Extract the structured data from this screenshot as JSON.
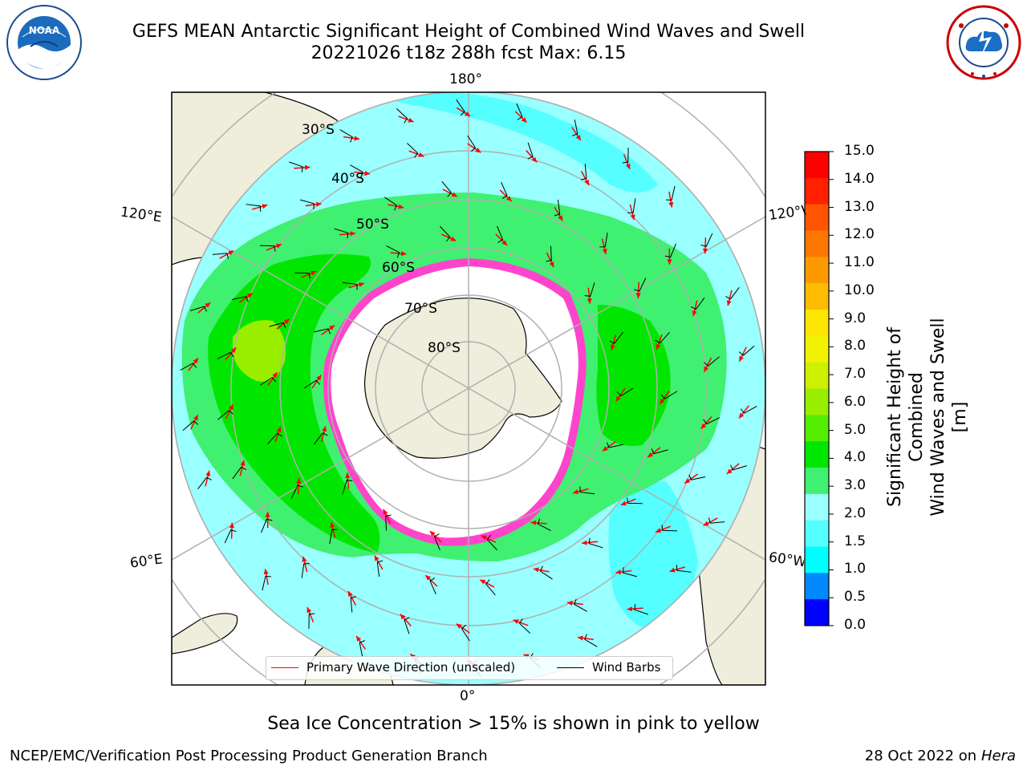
{
  "title": {
    "line1": "GEFS MEAN Antarctic Significant Height of Combined Wind Waves and Swell",
    "line2": "20221026 t18z 288h fcst   Max: 6.15"
  },
  "logos": {
    "left": "NOAA",
    "right": "NATIONAL WEATHER SERVICE"
  },
  "map": {
    "projection": "south-polar-stereographic",
    "longitude_labels": {
      "top": "180°",
      "upper_left": "120°E",
      "upper_right": "120°W",
      "lower_left": "60°E",
      "lower_right": "60°W",
      "bottom": "0°"
    },
    "latitude_labels": [
      "30°S",
      "40°S",
      "50°S",
      "60°S",
      "70°S",
      "80°S"
    ]
  },
  "legend": {
    "wave_label": "Primary Wave Direction (unscaled)",
    "wave_color": "#ff0000",
    "wind_label": "Wind Barbs",
    "wind_color": "#000000"
  },
  "colorbar": {
    "title_line1": "Significant Height of Combined",
    "title_line2": "Wind Waves and Swell [m]",
    "ticks": [
      "15.0",
      "14.0",
      "13.0",
      "12.0",
      "11.0",
      "10.0",
      "9.0",
      "8.0",
      "7.0",
      "6.0",
      "5.0",
      "4.0",
      "3.0",
      "2.0",
      "1.5",
      "1.0",
      "0.5",
      "0.0"
    ],
    "colors": [
      "#ff0000",
      "#ff2000",
      "#ff5500",
      "#ff7700",
      "#ff9900",
      "#ffbb00",
      "#ffe600",
      "#f2f200",
      "#ccf000",
      "#99ee00",
      "#55ee00",
      "#00e600",
      "#40f070",
      "#99ffff",
      "#55ffff",
      "#00ffff",
      "#0088ff",
      "#0000ff"
    ]
  },
  "colors": {
    "land": "#efeddc",
    "ocean_low": "#99ffff",
    "ocean_mid": "#55ffff",
    "wave_3m": "#40f070",
    "wave_4m": "#00e600",
    "wave_5m": "#99ee00",
    "ice": "#ff44cc"
  },
  "note": "Sea Ice Concentration > 15% is shown in pink to yellow",
  "footer": {
    "left": "NCEP/EMC/Verification Post Processing Product Generation Branch",
    "right_prefix": "28 Oct 2022 on ",
    "right_host": "Hera"
  }
}
